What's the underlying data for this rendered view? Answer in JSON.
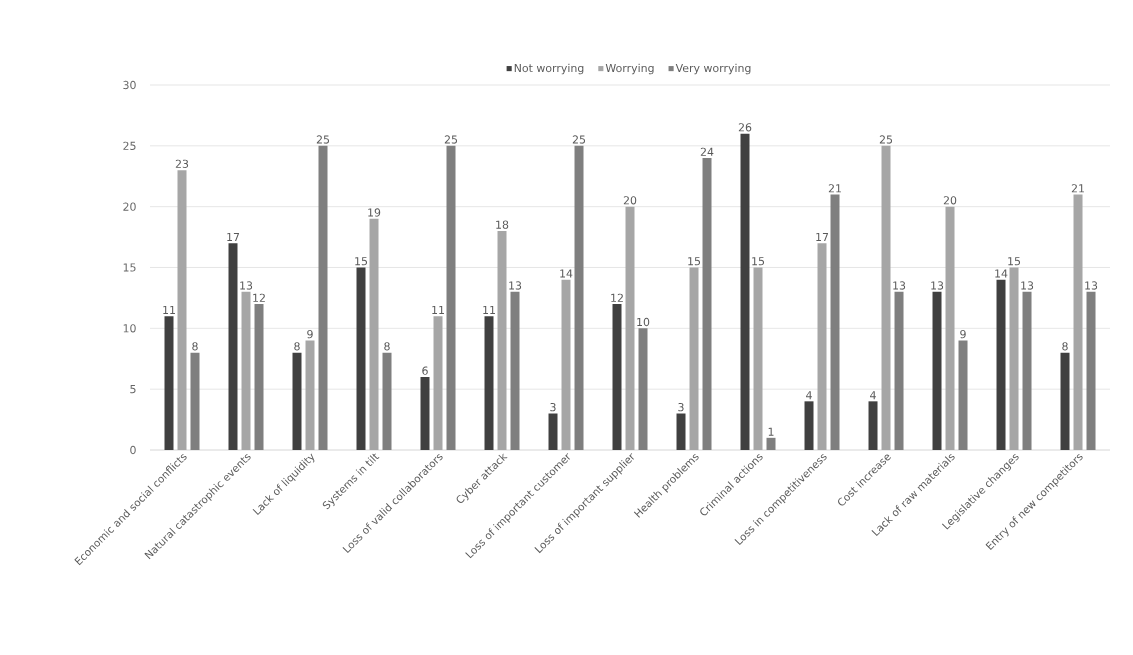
{
  "chart_data": {
    "type": "bar",
    "categories": [
      "Economic and social conflicts",
      "Natural catastrophic events",
      "Lack of liquidity",
      "Systems in tilt",
      "Loss of valid collaborators",
      "Cyber attack",
      "Loss of important customer",
      "Loss of important supplier",
      "Health problems",
      "Criminal actions",
      "Loss in competitiveness",
      "Cost increase",
      "Lack of raw materials",
      "Legislative changes",
      "Entry of new competitors"
    ],
    "series": [
      {
        "name": "Not worrying",
        "color": "#404040",
        "values": [
          11,
          17,
          8,
          15,
          6,
          11,
          3,
          12,
          3,
          26,
          4,
          4,
          13,
          14,
          8
        ]
      },
      {
        "name": "Worrying",
        "color": "#a6a6a6",
        "values": [
          23,
          13,
          9,
          19,
          11,
          18,
          14,
          20,
          15,
          15,
          17,
          25,
          20,
          15,
          21
        ]
      },
      {
        "name": "Very worrying",
        "color": "#7f7f7f",
        "values": [
          8,
          12,
          25,
          8,
          25,
          13,
          25,
          10,
          24,
          1,
          21,
          13,
          9,
          13,
          13
        ]
      }
    ],
    "ylim": [
      0,
      30
    ],
    "yticks": [
      0,
      5,
      10,
      15,
      20,
      25,
      30
    ],
    "grid": "y",
    "legend": "top",
    "data_labels": true
  }
}
